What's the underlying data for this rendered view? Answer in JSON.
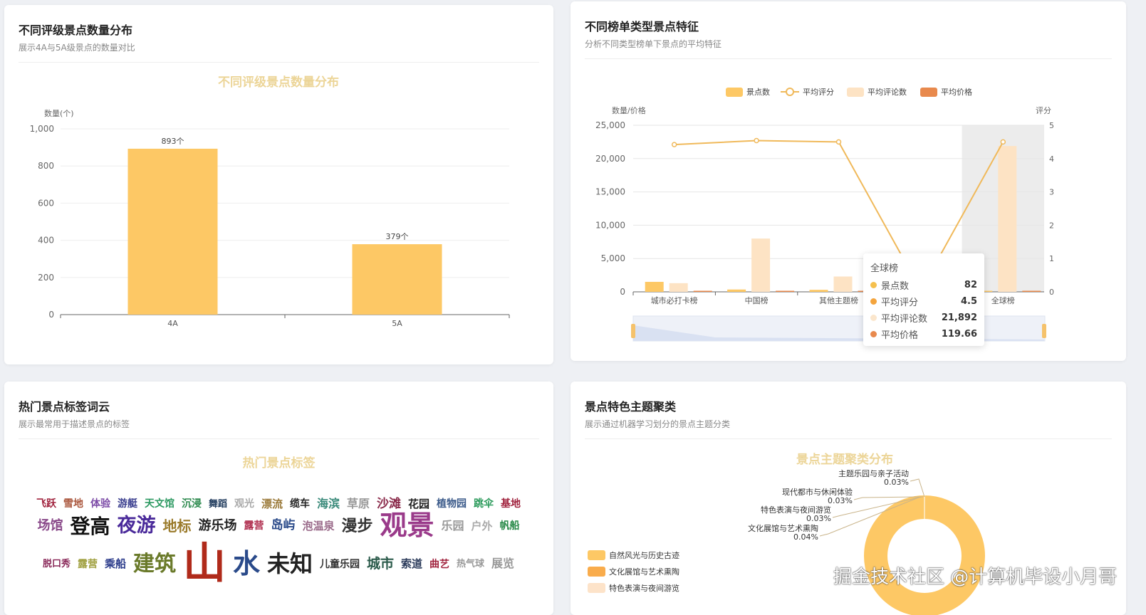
{
  "cards": [
    {
      "title": "不同评级景点数量分布",
      "subtitle": "展示4A与5A级景点的数量对比"
    },
    {
      "title": "不同榜单类型景点特征",
      "subtitle": "分析不同类型榜单下景点的平均特征"
    },
    {
      "title": "热门景点标签词云",
      "subtitle": "展示最常用于描述景点的标签"
    },
    {
      "title": "景点特色主题聚类",
      "subtitle": "展示通过机器学习划分的景点主题分类"
    }
  ],
  "chart_data": [
    {
      "type": "bar",
      "title": "不同评级景点数量分布",
      "ylabel": "数量(个)",
      "categories": [
        "4A",
        "5A"
      ],
      "values": [
        893,
        379
      ],
      "data_labels": [
        "893个",
        "379个"
      ],
      "ylim": [
        0,
        1000
      ],
      "yticks": [
        "0",
        "200",
        "400",
        "600",
        "800",
        "1,000"
      ],
      "color": "#fdc865",
      "grid": true
    },
    {
      "type": "bar+line",
      "ylabel_left": "数量/价格",
      "ylabel_right": "评分",
      "ylim_left": [
        0,
        25000
      ],
      "ylim_right": [
        0,
        5
      ],
      "yticks_left": [
        "0",
        "5,000",
        "10,000",
        "15,000",
        "20,000",
        "25,000"
      ],
      "yticks_right": [
        "0",
        "1",
        "2",
        "3",
        "4",
        "5"
      ],
      "categories": [
        "城市必打卡榜",
        "中国榜",
        "其他主题榜",
        "",
        "全球榜"
      ],
      "legend": "top",
      "series": [
        {
          "name": "景点数",
          "type": "bar",
          "color": "#fdc865",
          "values": [
            1500,
            350,
            300,
            null,
            82
          ]
        },
        {
          "name": "平均评分",
          "type": "line",
          "color": "#f0b95a",
          "values": [
            4.42,
            4.54,
            4.5,
            0.05,
            4.5
          ]
        },
        {
          "name": "平均评论数",
          "type": "bar",
          "color": "#fde3c4",
          "values": [
            1300,
            8000,
            2300,
            null,
            21892
          ]
        },
        {
          "name": "平均价格",
          "type": "bar",
          "color": "#e8894d",
          "values": [
            50,
            100,
            100,
            null,
            119.66
          ]
        }
      ],
      "tooltip": {
        "title": "全球榜",
        "rows": [
          [
            "景点数",
            "82",
            "#f5c04e"
          ],
          [
            "平均评分",
            "4.5",
            "#f4a43c"
          ],
          [
            "平均评论数",
            "21,892",
            "#fbe6cc"
          ],
          [
            "平均价格",
            "119.66",
            "#e8894d"
          ]
        ]
      }
    },
    {
      "type": "wordcloud",
      "title": "热门景点标签",
      "words": [
        [
          "飞跃",
          "#a0223d"
        ],
        [
          "雪地",
          "#a9543a"
        ],
        [
          "体验",
          "#7b4aa6"
        ],
        [
          "游艇",
          "#3b3f8f"
        ],
        [
          "天文馆",
          "#2e9a63"
        ],
        [
          "沉浸",
          "#2d8a4e"
        ],
        [
          "舞蹈",
          "#1f3a5c"
        ],
        [
          "观光",
          "#aaaaaa"
        ],
        [
          "漂流",
          "#9b7a3a"
        ],
        [
          "缆车",
          "#222"
        ],
        [
          "海滨",
          "#3a8a7a"
        ],
        [
          "草原",
          "#999"
        ],
        [
          "沙滩",
          "#8a2a4a"
        ],
        [
          "花园",
          "#222"
        ],
        [
          "植物园",
          "#3b5a8a"
        ],
        [
          "跳伞",
          "#2a9a5a"
        ],
        [
          "基地",
          "#a0223d"
        ],
        [
          "场馆",
          "#8a4a8a"
        ],
        [
          "登高",
          "#111"
        ],
        [
          "夜游",
          "#4a2a9a"
        ],
        [
          "地标",
          "#9a7a2a"
        ],
        [
          "游乐场",
          "#222"
        ],
        [
          "露营",
          "#b03050"
        ],
        [
          "岛屿",
          "#2a4a8a"
        ],
        [
          "泡温泉",
          "#9a6a8a"
        ],
        [
          "漫步",
          "#333"
        ],
        [
          "观景",
          "#9a3a8a"
        ],
        [
          "乐园",
          "#999"
        ],
        [
          "户外",
          "#aaa"
        ],
        [
          "帆船",
          "#2a8a4a"
        ],
        [
          "脱口秀",
          "#8a2a5a"
        ],
        [
          "露营",
          "#a0a040"
        ],
        [
          "乘船",
          "#2a3a8a"
        ],
        [
          "建筑",
          "#6a7a2a"
        ],
        [
          "山",
          "#b02a1a"
        ],
        [
          "水",
          "#2a4a8a"
        ],
        [
          "未知",
          "#222"
        ],
        [
          "儿童乐园",
          "#333"
        ],
        [
          "城市",
          "#2a5a4a"
        ],
        [
          "索道",
          "#2a3a5a"
        ],
        [
          "曲艺",
          "#a0223d"
        ],
        [
          "热气球",
          "#999"
        ],
        [
          "展览",
          "#999"
        ]
      ]
    },
    {
      "type": "pie",
      "title": "景点主题聚类分布",
      "slices": [
        {
          "name": "自然风光与历史古迹",
          "value": 99.87,
          "label": "",
          "color": "#fdc865"
        },
        {
          "name": "文化展馆与艺术熏陶",
          "value": 0.04,
          "label": "0.04%",
          "color": "#f9ac4c"
        },
        {
          "name": "特色表演与夜间游览",
          "value": 0.03,
          "label": "0.03%",
          "color": "#fde3c9"
        },
        {
          "name": "现代都市与休闲体验",
          "value": 0.03,
          "label": "0.03%",
          "color": "#c9a86a"
        },
        {
          "name": "主题乐园与亲子活动",
          "value": 0.03,
          "label": "0.03%",
          "color": "#e6c99a"
        }
      ],
      "legend": "left"
    }
  ],
  "watermark": "掘金技术社区 @计算机毕设小月哥"
}
